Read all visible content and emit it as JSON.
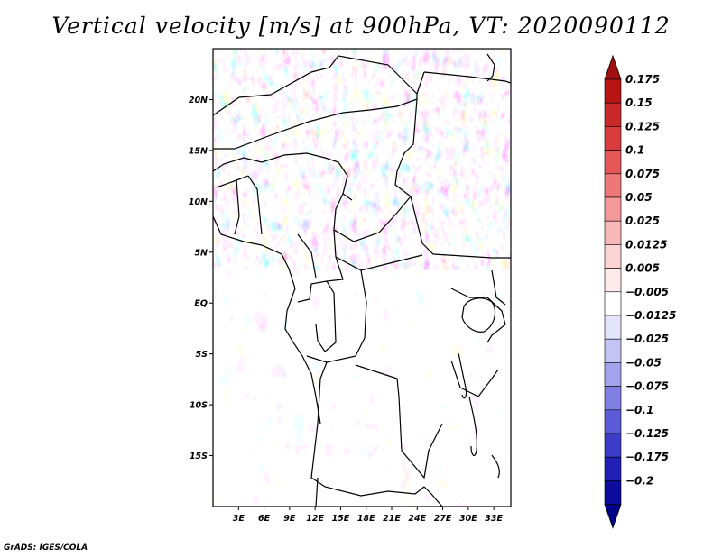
{
  "title": "Vertical velocity [m/s] at 900hPa, VT: 2020090112",
  "credit": "GrADS: IGES/COLA",
  "map": {
    "lat_range": [
      -20,
      25
    ],
    "lon_range": [
      0,
      35
    ],
    "lat_labels": [
      {
        "lat": 20,
        "label": "20N"
      },
      {
        "lat": 15,
        "label": "15N"
      },
      {
        "lat": 10,
        "label": "10N"
      },
      {
        "lat": 5,
        "label": "5N"
      },
      {
        "lat": 0,
        "label": "EQ"
      },
      {
        "lat": -5,
        "label": "5S"
      },
      {
        "lat": -10,
        "label": "10S"
      },
      {
        "lat": -15,
        "label": "15S"
      }
    ],
    "lon_labels": [
      {
        "lon": 3,
        "label": "3E"
      },
      {
        "lon": 6,
        "label": "6E"
      },
      {
        "lon": 9,
        "label": "9E"
      },
      {
        "lon": 12,
        "label": "12E"
      },
      {
        "lon": 15,
        "label": "15E"
      },
      {
        "lon": 18,
        "label": "18E"
      },
      {
        "lon": 21,
        "label": "21E"
      },
      {
        "lon": 24,
        "label": "24E"
      },
      {
        "lon": 27,
        "label": "27E"
      },
      {
        "lon": 30,
        "label": "30E"
      },
      {
        "lon": 33,
        "label": "33E"
      }
    ]
  },
  "colorbar": {
    "levels": [
      {
        "label": "0.175",
        "color": "#b81414"
      },
      {
        "label": "0.15",
        "color": "#c82828"
      },
      {
        "label": "0.125",
        "color": "#d83c3c"
      },
      {
        "label": "0.1",
        "color": "#e45858"
      },
      {
        "label": "0.075",
        "color": "#ee7878"
      },
      {
        "label": "0.05",
        "color": "#f49898"
      },
      {
        "label": "0.025",
        "color": "#f8b8b8"
      },
      {
        "label": "0.0125",
        "color": "#fcd4d4"
      },
      {
        "label": "0.005",
        "color": "#feeaea"
      },
      {
        "label": "−0.005",
        "color": "#ffffff"
      },
      {
        "label": "−0.0125",
        "color": "#e4e4fa"
      },
      {
        "label": "−0.025",
        "color": "#c4c4f4"
      },
      {
        "label": "−0.05",
        "color": "#a4a4ee"
      },
      {
        "label": "−0.075",
        "color": "#8080e4"
      },
      {
        "label": "−0.1",
        "color": "#5c5cd8"
      },
      {
        "label": "−0.125",
        "color": "#3c3cc8"
      },
      {
        "label": "−0.175",
        "color": "#2020b4"
      },
      {
        "label": "−0.2",
        "color": "#0c0c9c"
      }
    ],
    "top_color": "#a01010",
    "bottom_color": "#000088"
  }
}
